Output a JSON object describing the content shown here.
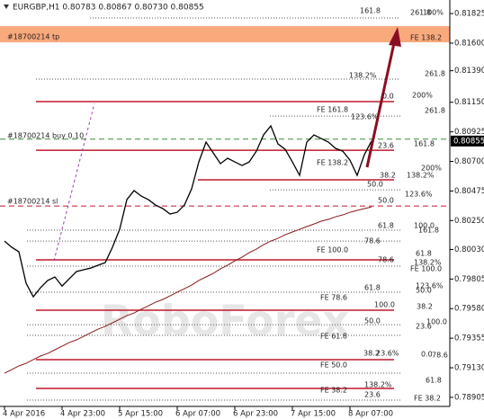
{
  "chart_data": {
    "type": "line",
    "title": "EURGBP,H1  0.80783 0.80867 0.80730 0.80855",
    "watermark": "RoboForex",
    "categories": [
      "4 Apr 2016",
      null,
      null,
      null,
      null,
      null,
      null,
      null,
      "4 Apr 23:00",
      null,
      null,
      null,
      null,
      null,
      null,
      null,
      "5 Apr 15:00",
      null,
      null,
      null,
      null,
      null,
      null,
      null,
      "6 Apr 07:00",
      null,
      null,
      null,
      null,
      null,
      null,
      null,
      "6 Apr 23:00",
      null,
      null,
      null,
      null,
      null,
      null,
      null,
      "7 Apr 15:00",
      null,
      null,
      null,
      null,
      null,
      null,
      null,
      "8 Apr 07:00",
      null,
      null,
      null
    ],
    "series": [
      {
        "color": "#000000",
        "values": [
          0.80094,
          0.80047,
          0.80012,
          0.79773,
          0.7967,
          0.79739,
          0.79794,
          0.79821,
          0.79752,
          0.79807,
          0.79862,
          0.79876,
          0.79889,
          0.7991,
          0.7993,
          0.80047,
          0.80183,
          0.80409,
          0.80478,
          0.80436,
          0.80409,
          0.80368,
          0.80341,
          0.803,
          0.80313,
          0.80368,
          0.80491,
          0.80696,
          0.80847,
          0.80765,
          0.80683,
          0.80724,
          0.80696,
          0.80669,
          0.80696,
          0.80778,
          0.80902,
          0.8097,
          0.80833,
          0.80792,
          0.80696,
          0.80594,
          0.80847,
          0.80902,
          0.80874,
          0.80847,
          0.80799,
          0.80778,
          0.8071,
          0.80594,
          0.80751,
          0.80855
        ]
      },
      {
        "color": "#8b1a1a",
        "values": [
          0.79089,
          0.79116,
          0.79144,
          0.79164,
          0.79192,
          0.79219,
          0.79239,
          0.79267,
          0.79294,
          0.79322,
          0.79342,
          0.79369,
          0.79397,
          0.79424,
          0.79445,
          0.79472,
          0.79499,
          0.79527,
          0.79547,
          0.79575,
          0.79602,
          0.79629,
          0.7965,
          0.79677,
          0.79705,
          0.79732,
          0.79759,
          0.79794,
          0.79821,
          0.79848,
          0.79882,
          0.7991,
          0.79944,
          0.79971,
          0.80006,
          0.80033,
          0.80067,
          0.80094,
          0.80115,
          0.80142,
          0.80163,
          0.80183,
          0.80204,
          0.80224,
          0.80245,
          0.80259,
          0.80279,
          0.80293,
          0.80313,
          0.80327,
          0.80341,
          0.80354
        ]
      }
    ],
    "last_price": 0.80855,
    "ylim": [
      0.78836,
      0.81928
    ],
    "yticks": [
      0.81825,
      {
        "value": 0.816,
        "label": "0.81600"
      },
      {
        "value": 0.8139,
        "label": "0.81390"
      },
      {
        "value": 0.8115,
        "label": "0.81150"
      },
      0.80925,
      {
        "value": 0.807,
        "label": "0.80700"
      },
      0.80475,
      {
        "value": 0.8025,
        "label": "0.80250"
      },
      {
        "value": 0.8003,
        "label": "0.80030"
      },
      0.79805,
      {
        "value": 0.7958,
        "label": "0.79580"
      },
      0.79355,
      {
        "value": 0.7913,
        "label": "0.79130"
      },
      0.78905
    ],
    "tp_band": [
      0.81729,
      0.81606
    ],
    "levels": [
      {
        "value": 0.81791,
        "style": "dots"
      },
      {
        "value": 0.81326,
        "style": "dots"
      },
      {
        "value": 0.81155,
        "style": "red"
      },
      {
        "value": 0.81045,
        "style": "dots"
      },
      {
        "value": 0.80869,
        "style": "green-dash"
      },
      {
        "value": 0.80785,
        "style": "red"
      },
      {
        "value": 0.8056,
        "style": "red"
      },
      {
        "value": 0.80484,
        "style": "dots"
      },
      {
        "value": 0.80361,
        "style": "red-dash"
      },
      {
        "value": 0.80177,
        "style": "dots"
      },
      {
        "value": 0.80094,
        "style": "dots"
      },
      {
        "value": 0.79951,
        "style": "red"
      },
      {
        "value": 0.79903,
        "style": "dots"
      },
      {
        "value": 0.79705,
        "style": "dots"
      },
      {
        "value": 0.79568,
        "style": "red"
      },
      {
        "value": 0.79458,
        "style": "dots"
      },
      {
        "value": 0.79376,
        "style": "dots"
      },
      {
        "value": 0.79192,
        "style": "red"
      },
      {
        "value": 0.79089,
        "style": "dots"
      },
      {
        "value": 0.78973,
        "style": "red"
      },
      {
        "value": 0.78884,
        "style": "dots"
      }
    ],
    "annotations": [
      "161.8",
      "261.8",
      "100%",
      "FE 138.2",
      "#18700214 tp",
      "138.2%",
      "261.8",
      "0.0",
      "200%",
      "FE 161.8",
      "261.8",
      "123.6%",
      "#18700214 buy 0.10",
      "23.6",
      "161.8",
      "FE 138.2",
      "200%",
      "38.2",
      "138.2%",
      "50.0",
      "123.6%",
      "#18700214 sl",
      "50.0",
      "100.0",
      "61.8",
      "161.8",
      "78.6",
      "FE 100.0",
      "61.8",
      "78.6",
      "138.2%",
      "FE 100.0",
      "61.8",
      "123.6%",
      "50.0",
      "FE 78.6",
      "100.0",
      "38.2",
      "50.0",
      "100.0",
      "23.6",
      "FE 61.8",
      "38.2",
      "23.6%",
      "0.0",
      "78.6",
      "FE 50.0",
      "61.8",
      "138.2%",
      "FE 38.2",
      "23.6",
      "FE 38.2"
    ]
  }
}
